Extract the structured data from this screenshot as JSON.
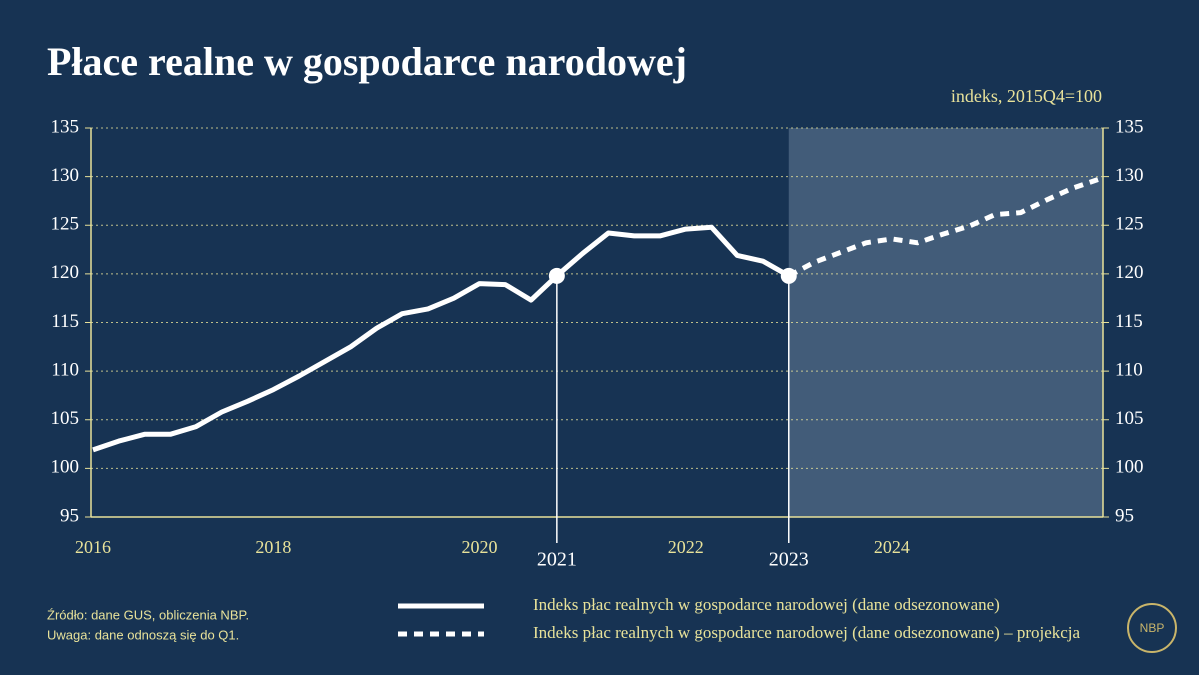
{
  "chart_data": {
    "type": "line",
    "title": "Płace realne w gospodarce narodowej",
    "subtitle": "indeks, 2015Q4=100",
    "categories": [
      "2016",
      null,
      null,
      null,
      null,
      null,
      null,
      "2018",
      null,
      null,
      null,
      null,
      null,
      null,
      null,
      "2020",
      null,
      null,
      "2021",
      null,
      null,
      null,
      null,
      "2022",
      null,
      null,
      null,
      "2023",
      null,
      null,
      null,
      "2024",
      null,
      null,
      null,
      null,
      null,
      null,
      null,
      null
    ],
    "highlighted_categories": [
      "2021",
      "2023"
    ],
    "series": [
      {
        "name": "Indeks płac realnych w gospodarce narodowej (dane odsezonowane)",
        "color": "#ffffff",
        "dashed": false,
        "values": [
          101.9,
          102.8,
          103.5,
          103.5,
          104.3,
          105.8,
          106.9,
          108.1,
          109.5,
          111.0,
          112.5,
          114.4,
          115.9,
          116.4,
          117.5,
          119.0,
          118.9,
          117.3,
          119.8,
          122.1,
          124.2,
          123.9,
          123.9,
          124.6,
          124.8,
          121.9,
          121.3,
          119.8,
          null,
          null,
          null,
          null,
          null,
          null,
          null,
          null,
          null,
          null,
          null,
          null
        ]
      },
      {
        "name": "Indeks płac realnych w gospodarce narodowej (dane odsezonowane) – projekcja",
        "color": "#ffffff",
        "dashed": true,
        "values": [
          null,
          null,
          null,
          null,
          null,
          null,
          null,
          null,
          null,
          null,
          null,
          null,
          null,
          null,
          null,
          null,
          null,
          null,
          null,
          null,
          null,
          null,
          null,
          null,
          null,
          null,
          null,
          119.8,
          121.2,
          122.2,
          123.2,
          123.6,
          123.2,
          124.1,
          124.9,
          126.1,
          126.3,
          127.6,
          128.8,
          129.7
        ]
      }
    ],
    "ylim": [
      95,
      135
    ],
    "yticks": [
      95,
      100,
      105,
      110,
      115,
      120,
      125,
      130,
      135
    ],
    "y2lim": [
      95,
      135
    ],
    "y2ticks": [
      95,
      100,
      105,
      110,
      115,
      120,
      125,
      130,
      135
    ],
    "grid": true,
    "notes": [
      "Źródło: dane GUS, obliczenia NBP.",
      "Uwaga: dane odnoszą się do Q1."
    ],
    "logo": "NBP"
  }
}
